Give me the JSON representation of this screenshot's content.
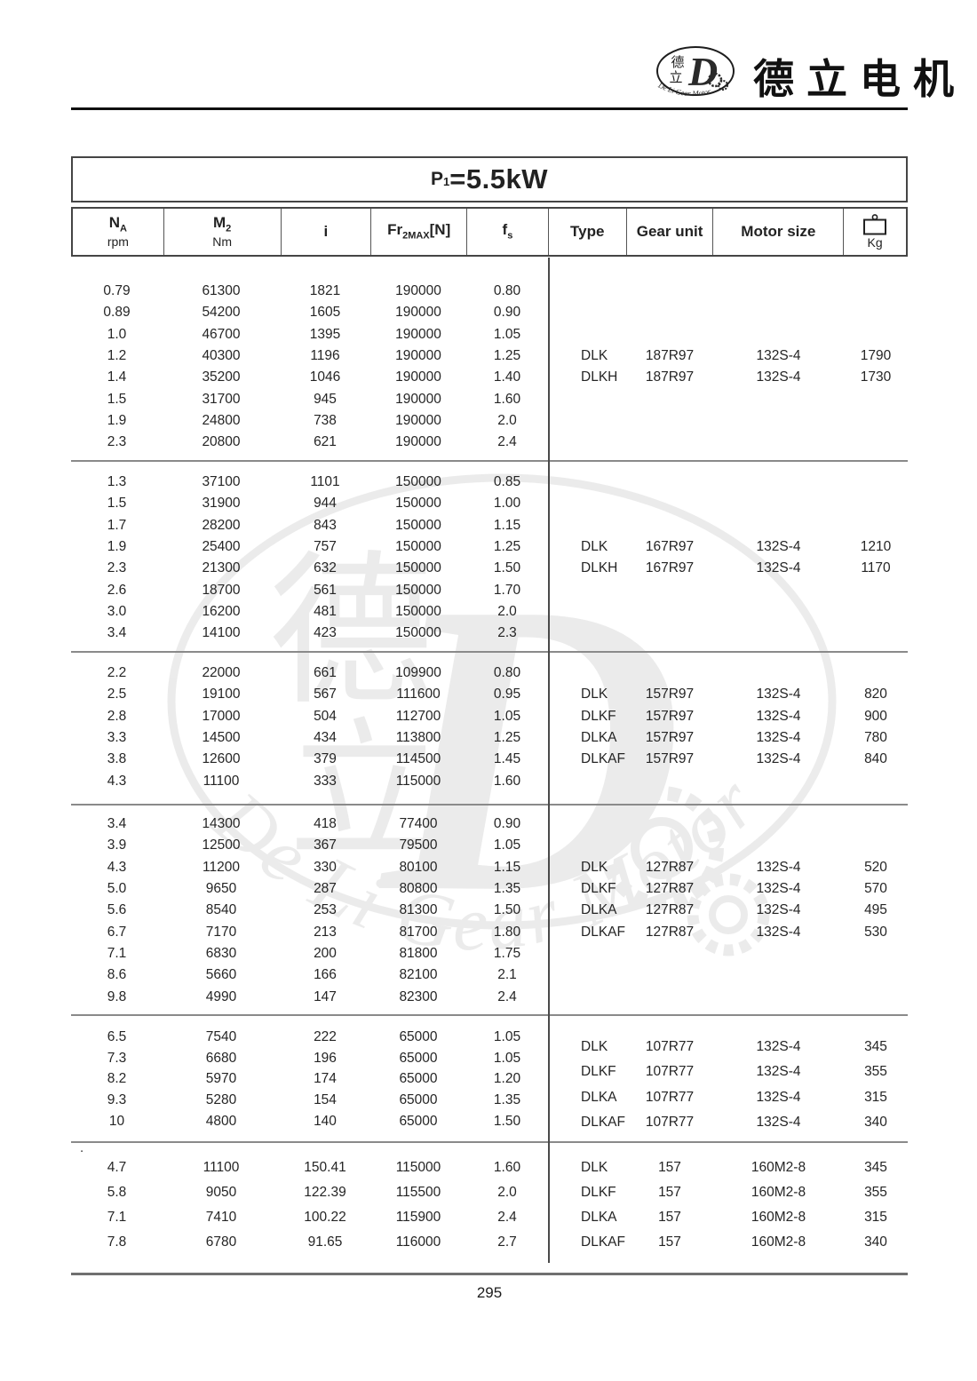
{
  "brand": {
    "logo": {
      "char_top": "德",
      "char_bottom": "立",
      "letter": "D",
      "arc_text": "De Li Gear Motor"
    },
    "company_name": "德立电机"
  },
  "title": {
    "symbol": "P",
    "subscript": "1",
    "value": "=5.5kW"
  },
  "table": {
    "headers": [
      {
        "symbol": "N",
        "sub": "A",
        "unit": "rpm"
      },
      {
        "symbol": "M",
        "sub": "2",
        "unit": "Nm"
      },
      {
        "symbol": "i"
      },
      {
        "symbol": "Fr",
        "sub": "2MAX",
        "suffix": "[N]"
      },
      {
        "symbol": "f",
        "sub": "s"
      },
      {
        "label": "Type"
      },
      {
        "label": "Gear unit"
      },
      {
        "label": "Motor size"
      },
      {
        "icon": "weight-icon",
        "unit": "Kg"
      }
    ],
    "blocks": [
      {
        "rows": [
          [
            "0.79",
            "61300",
            "1821",
            "190000",
            "0.80"
          ],
          [
            "0.89",
            "54200",
            "1605",
            "190000",
            "0.90"
          ],
          [
            "1.0",
            "46700",
            "1395",
            "190000",
            "1.05"
          ],
          [
            "1.2",
            "40300",
            "1196",
            "190000",
            "1.25"
          ],
          [
            "1.4",
            "35200",
            "1046",
            "190000",
            "1.40"
          ],
          [
            "1.5",
            "31700",
            "945",
            "190000",
            "1.60"
          ],
          [
            "1.9",
            "24800",
            "738",
            "190000",
            "2.0"
          ],
          [
            "2.3",
            "20800",
            "621",
            "190000",
            "2.4"
          ]
        ],
        "types": [
          [
            "DLK",
            "187R97",
            "132S-4",
            "1790"
          ],
          [
            "DLKH",
            "187R97",
            "132S-4",
            "1730"
          ]
        ]
      },
      {
        "rows": [
          [
            "1.3",
            "37100",
            "1101",
            "150000",
            "0.85"
          ],
          [
            "1.5",
            "31900",
            "944",
            "150000",
            "1.00"
          ],
          [
            "1.7",
            "28200",
            "843",
            "150000",
            "1.15"
          ],
          [
            "1.9",
            "25400",
            "757",
            "150000",
            "1.25"
          ],
          [
            "2.3",
            "21300",
            "632",
            "150000",
            "1.50"
          ],
          [
            "2.6",
            "18700",
            "561",
            "150000",
            "1.70"
          ],
          [
            "3.0",
            "16200",
            "481",
            "150000",
            "2.0"
          ],
          [
            "3.4",
            "14100",
            "423",
            "150000",
            "2.3"
          ]
        ],
        "types": [
          [
            "DLK",
            "167R97",
            "132S-4",
            "1210"
          ],
          [
            "DLKH",
            "167R97",
            "132S-4",
            "1170"
          ]
        ]
      },
      {
        "rows": [
          [
            "2.2",
            "22000",
            "661",
            "109900",
            "0.80"
          ],
          [
            "2.5",
            "19100",
            "567",
            "111600",
            "0.95"
          ],
          [
            "2.8",
            "17000",
            "504",
            "112700",
            "1.05"
          ],
          [
            "3.3",
            "14500",
            "434",
            "113800",
            "1.25"
          ],
          [
            "3.8",
            "12600",
            "379",
            "114500",
            "1.45"
          ],
          [
            "4.3",
            "11100",
            "333",
            "115000",
            "1.60"
          ]
        ],
        "types": [
          [
            "DLK",
            "157R97",
            "132S-4",
            "820"
          ],
          [
            "DLKF",
            "157R97",
            "132S-4",
            "900"
          ],
          [
            "DLKA",
            "157R97",
            "132S-4",
            "780"
          ],
          [
            "DLKAF",
            "157R97",
            "132S-4",
            "840"
          ]
        ]
      },
      {
        "rows": [
          [
            "3.4",
            "14300",
            "418",
            "77400",
            "0.90"
          ],
          [
            "3.9",
            "12500",
            "367",
            "79500",
            "1.05"
          ],
          [
            "4.3",
            "11200",
            "330",
            "80100",
            "1.15"
          ],
          [
            "5.0",
            "9650",
            "287",
            "80800",
            "1.35"
          ],
          [
            "5.6",
            "8540",
            "253",
            "81300",
            "1.50"
          ],
          [
            "6.7",
            "7170",
            "213",
            "81700",
            "1.80"
          ],
          [
            "7.1",
            "6830",
            "200",
            "81800",
            "1.75"
          ],
          [
            "8.6",
            "5660",
            "166",
            "82100",
            "2.1"
          ],
          [
            "9.8",
            "4990",
            "147",
            "82300",
            "2.4"
          ]
        ],
        "types": [
          [
            "DLK",
            "127R87",
            "132S-4",
            "520"
          ],
          [
            "DLKF",
            "127R87",
            "132S-4",
            "570"
          ],
          [
            "DLKA",
            "127R87",
            "132S-4",
            "495"
          ],
          [
            "DLKAF",
            "127R87",
            "132S-4",
            "530"
          ]
        ]
      },
      {
        "rows": [
          [
            "6.5",
            "7540",
            "222",
            "65000",
            "1.05"
          ],
          [
            "7.3",
            "6680",
            "196",
            "65000",
            "1.05"
          ],
          [
            "8.2",
            "5970",
            "174",
            "65000",
            "1.20"
          ],
          [
            "9.3",
            "5280",
            "154",
            "65000",
            "1.35"
          ],
          [
            "10",
            "4800",
            "140",
            "65000",
            "1.50"
          ]
        ],
        "types": [
          [
            "DLK",
            "107R77",
            "132S-4",
            "345"
          ],
          [
            "DLKF",
            "107R77",
            "132S-4",
            "355"
          ],
          [
            "DLKA",
            "107R77",
            "132S-4",
            "315"
          ],
          [
            "DLKAF",
            "107R77",
            "132S-4",
            "340"
          ]
        ]
      },
      {
        "rows": [
          [
            "4.7",
            "11100",
            "150.41",
            "115000",
            "1.60"
          ],
          [
            "5.8",
            "9050",
            "122.39",
            "115500",
            "2.0"
          ],
          [
            "7.1",
            "7410",
            "100.22",
            "115900",
            "2.4"
          ],
          [
            "7.8",
            "6780",
            "91.65",
            "116000",
            "2.7"
          ]
        ],
        "types": [
          [
            "DLK",
            "157",
            "160M2-8",
            "345"
          ],
          [
            "DLKF",
            "157",
            "160M2-8",
            "355"
          ],
          [
            "DLKA",
            "157",
            "160M2-8",
            "315"
          ],
          [
            "DLKAF",
            "157",
            "160M2-8",
            "340"
          ]
        ]
      }
    ],
    "stray_mark": "."
  },
  "watermark": {
    "char_top": "德",
    "char_bottom": "立",
    "letter": "D",
    "arc_text": "De Li Gear Motor"
  },
  "footer": {
    "page_number": "295"
  },
  "colors": {
    "text": "#222222",
    "border_dark": "#454545",
    "separator": "#8a8a8a",
    "watermark": "#666666"
  }
}
